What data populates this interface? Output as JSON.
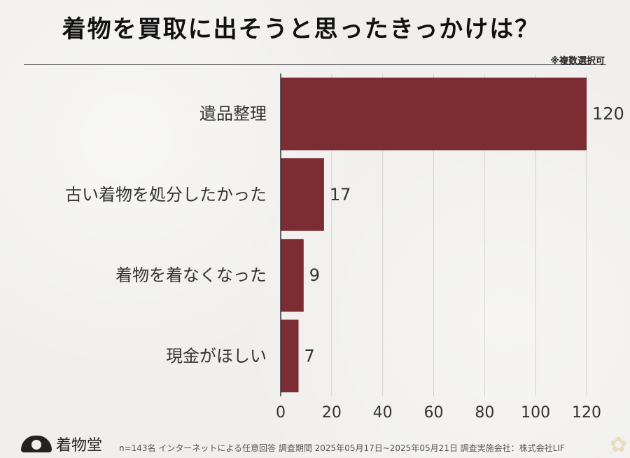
{
  "title": "着物を買取に出そうと思ったきっかけは？",
  "note": "※複数選択可",
  "footer": {
    "logo": "着物堂",
    "text": "n=143名 インターネットによる任意回答 調査期間 2025年05月17日~2025年05月21日 調査実施会社：株式会社LIF"
  },
  "colors": {
    "bar": "#7b2d33",
    "grid": "#d6d3cf",
    "axis": "#333333"
  },
  "chart_data": {
    "type": "bar",
    "orientation": "horizontal",
    "categories": [
      "遺品整理",
      "古い着物を処分したかった",
      "着物を着なくなった",
      "現金がほしい"
    ],
    "values": [
      120,
      17,
      9,
      7
    ],
    "xlim": [
      0,
      120
    ],
    "xticks": [
      0,
      20,
      40,
      60,
      80,
      100,
      120
    ],
    "grid": true,
    "title": "着物を買取に出そうと思ったきっかけは？"
  }
}
